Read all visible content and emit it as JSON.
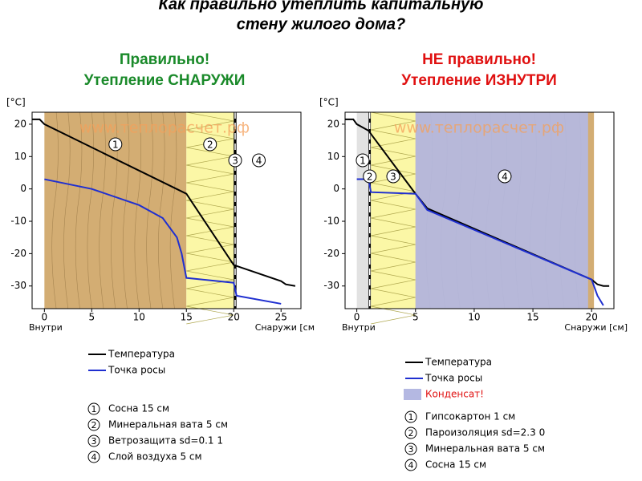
{
  "title": [
    "Как правильно утеплить капитальную",
    "стену жилого дома?"
  ],
  "chart_data": [
    {
      "type": "line",
      "heading": [
        "Правильно!",
        "Утепление СНАРУЖИ"
      ],
      "heading_color": "#1a8a2a",
      "ylabel": "[°C]",
      "xlabel_left": "Внутри",
      "xlabel_right": "Снаружи [см",
      "watermark": "www.теплорасчет.рф",
      "xlim": [
        -1.3,
        27.1
      ],
      "ylim": [
        -37,
        23.7
      ],
      "xticks": [
        0,
        5,
        10,
        15,
        20,
        25
      ],
      "yticks": [
        20,
        10,
        0,
        -10,
        -20,
        -30
      ],
      "layers": [
        {
          "number": 1,
          "name": "Сосна 15 см",
          "range": [
            0,
            15
          ],
          "color": "#d3ad73"
        },
        {
          "number": 2,
          "name": "Минеральная вата 5 см",
          "range": [
            15,
            20
          ],
          "color": "#fbf7a6"
        },
        {
          "number": 3,
          "name": "Ветрозащита sd=0.1 1",
          "range": [
            20,
            20.3
          ],
          "color": "#000000"
        },
        {
          "number": 4,
          "name": "Слой воздуха 5 см",
          "range": [
            20.3,
            25
          ],
          "color": "#ffffff"
        }
      ],
      "series": [
        {
          "name": "Температура",
          "color": "#000000",
          "x": [
            -1.3,
            -0.5,
            0,
            15,
            20,
            25,
            25.5,
            26.5
          ],
          "values": [
            21.5,
            21.5,
            20,
            -1.5,
            -23.5,
            -28.5,
            -29.5,
            -30
          ]
        },
        {
          "name": "Точка росы",
          "color": "#1f2fd0",
          "x": [
            0,
            5,
            10,
            12.5,
            14,
            14.5,
            15,
            20,
            20.3,
            25
          ],
          "values": [
            3,
            0,
            -5,
            -9,
            -15,
            -20,
            -27.5,
            -29,
            -33,
            -35.5
          ]
        }
      ]
    },
    {
      "type": "line",
      "heading": [
        "НЕ правильно!",
        "Утепление ИЗНУТРИ"
      ],
      "heading_color": "#e01010",
      "ylabel": "[°C]",
      "xlabel_left": "Внутри",
      "xlabel_right": "Снаружи [см]",
      "watermark": "www.теплорасчет.рф",
      "xlim": [
        -1,
        21.9
      ],
      "ylim": [
        -37,
        23.7
      ],
      "xticks": [
        0,
        5,
        10,
        15,
        20
      ],
      "yticks": [
        20,
        10,
        0,
        -10,
        -20,
        -30
      ],
      "layers": [
        {
          "number": 1,
          "name": "Гипсокартон 1 см",
          "range": [
            0,
            1
          ],
          "color": "#e2e2e2"
        },
        {
          "number": 2,
          "name": "Пароизоляция sd=2.3 0",
          "range": [
            1,
            1.2
          ],
          "color": "#000000"
        },
        {
          "number": 3,
          "name": "Минеральная вата 5 см",
          "range": [
            1.2,
            5
          ],
          "color": "#fbf7a6"
        },
        {
          "number": 4,
          "name": "Сосна 15 см",
          "range": [
            5,
            20.2
          ],
          "color": "#d3ad73"
        }
      ],
      "condensate": {
        "name": "Конденсат!",
        "color": "#b4b8e2",
        "range": [
          5,
          19.7
        ]
      },
      "series": [
        {
          "name": "Температура",
          "color": "#000000",
          "x": [
            -1,
            -0.3,
            0,
            1,
            1.2,
            5,
            6,
            20,
            20.5,
            21,
            21.5
          ],
          "values": [
            21.5,
            21.5,
            20,
            18,
            17,
            -1.5,
            -6,
            -28,
            -29.5,
            -30,
            -30
          ]
        },
        {
          "name": "Точка росы",
          "color": "#1f2fd0",
          "x": [
            0,
            1,
            1.2,
            5,
            6,
            20,
            20.5,
            21
          ],
          "values": [
            3,
            3,
            -1,
            -1.5,
            -6.5,
            -28,
            -33,
            -36
          ]
        }
      ]
    }
  ]
}
